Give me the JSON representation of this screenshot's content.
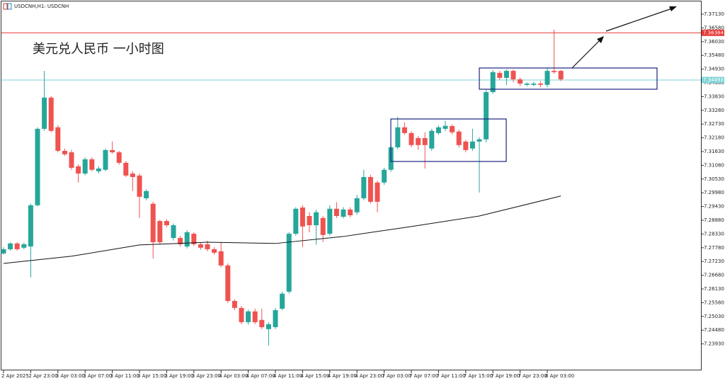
{
  "chart_data": {
    "type": "candlestick",
    "symbol_label": "USDCNH,H1: USDCNH",
    "title": "美元兑人民币 一小时图",
    "up_color": "#26a69a",
    "down_color": "#ef5350",
    "categories": [
      "2 Apr 2025",
      null,
      null,
      null,
      "2 Apr 23:00",
      null,
      null,
      null,
      "3 Apr 03:00",
      null,
      null,
      null,
      "3 Apr 07:00",
      null,
      null,
      null,
      "3 Apr 11:00",
      null,
      null,
      null,
      "3 Apr 15:00",
      null,
      null,
      null,
      "3 Apr 19:00",
      null,
      null,
      null,
      "3 Apr 23:00",
      null,
      null,
      null,
      "4 Apr 03:00",
      null,
      null,
      null,
      "4 Apr 07:00",
      null,
      null,
      null,
      "4 Apr 11:00",
      null,
      null,
      null,
      "4 Apr 15:00",
      null,
      null,
      null,
      "4 Apr 19:00",
      null,
      null,
      null,
      "4 Apr 23:00",
      null,
      null,
      null,
      "7 Apr 03:00",
      null,
      null,
      null,
      "7 Apr 07:00",
      null,
      null,
      null,
      "7 Apr 11:00",
      null,
      null,
      null,
      "7 Apr 15:00",
      null,
      null,
      null,
      "7 Apr 19:00",
      null,
      null,
      null,
      "7 Apr 23:00",
      null,
      null,
      null,
      "8 Apr 03:00",
      null,
      null
    ],
    "open": [
      7.2755,
      7.2772,
      7.2795,
      7.2778,
      7.2783,
      7.2948,
      7.3254,
      7.3379,
      7.326,
      7.3166,
      7.316,
      7.3104,
      7.3075,
      7.3132,
      7.3084,
      7.309,
      7.3169,
      7.316,
      7.3118,
      7.3075,
      7.3067,
      7.2976,
      7.2954,
      7.2885,
      7.2885,
      7.2817,
      7.2817,
      7.2783,
      7.2834,
      7.2792,
      7.2792,
      7.2772,
      7.2764,
      7.2707,
      7.2565,
      7.2537,
      7.248,
      7.2523,
      7.2489,
      7.2452,
      7.246,
      7.2534,
      7.2602,
      7.2834,
      7.2939,
      7.2905,
      7.2868,
      7.2897,
      7.2834,
      7.2934,
      7.2902,
      7.2931,
      7.292,
      7.2976,
      7.3061,
      7.3039,
      7.3039,
      7.309,
      7.318,
      7.326,
      7.3237,
      7.3217,
      7.3217,
      7.3175,
      7.3237,
      7.3254,
      7.3265,
      7.3243,
      7.3203,
      7.3175,
      7.3203,
      7.3212,
      7.3401,
      7.3478,
      7.3458,
      7.3486,
      7.3452,
      7.343,
      7.343,
      7.3435,
      7.343,
      7.3486,
      7.3486
    ],
    "high": [
      7.278,
      7.28,
      7.28,
      7.2798,
      7.2954,
      7.326,
      7.3486,
      7.3385,
      7.3268,
      7.3175,
      7.317,
      7.3112,
      7.314,
      7.314,
      7.3104,
      7.3175,
      7.3203,
      7.3166,
      7.3125,
      7.3084,
      7.3075,
      7.3012,
      7.2962,
      7.289,
      7.2892,
      7.2875,
      7.2825,
      7.2848,
      7.284,
      7.28,
      7.2806,
      7.278,
      7.28,
      7.2715,
      7.2572,
      7.2545,
      7.253,
      7.2534,
      7.2534,
      7.248,
      7.2537,
      7.2602,
      7.284,
      7.294,
      7.2948,
      7.292,
      7.293,
      7.2905,
      7.2948,
      7.296,
      7.294,
      7.294,
      7.299,
      7.309,
      7.307,
      7.3045,
      7.3098,
      7.319,
      7.3302,
      7.328,
      7.3245,
      7.3225,
      7.324,
      7.3254,
      7.3268,
      7.3285,
      7.3272,
      7.325,
      7.321,
      7.3254,
      7.322,
      7.341,
      7.349,
      7.3486,
      7.3492,
      7.3492,
      7.346,
      7.344,
      7.3442,
      7.3445,
      7.3495,
      7.3651,
      7.349
    ],
    "low": [
      7.275,
      7.2766,
      7.2766,
      7.2772,
      7.2659,
      7.2943,
      7.3246,
      7.324,
      7.316,
      7.3146,
      7.309,
      7.3039,
      7.3068,
      7.3084,
      7.3075,
      7.3084,
      7.3155,
      7.311,
      7.3061,
      7.3005,
      7.2897,
      7.2968,
      7.2735,
      7.2792,
      7.286,
      7.2806,
      7.2783,
      7.2775,
      7.2785,
      7.277,
      7.2764,
      7.275,
      7.27,
      7.2557,
      7.2528,
      7.2472,
      7.247,
      7.2472,
      7.2452,
      7.2387,
      7.2452,
      7.2528,
      7.2594,
      7.2826,
      7.278,
      7.284,
      7.279,
      7.28,
      7.2826,
      7.2897,
      7.2895,
      7.29,
      7.291,
      7.2968,
      7.2955,
      7.292,
      7.303,
      7.3082,
      7.3172,
      7.323,
      7.318,
      7.317,
      7.3095,
      7.3166,
      7.323,
      7.3245,
      7.3232,
      7.318,
      7.316,
      7.3166,
      7.2999,
      7.32,
      7.3395,
      7.345,
      7.343,
      7.344,
      7.3425,
      7.3425,
      7.3425,
      7.342,
      7.342,
      7.3475,
      7.3445
    ],
    "close": [
      7.2772,
      7.2795,
      7.2772,
      7.2792,
      7.2948,
      7.3254,
      7.3379,
      7.3246,
      7.3166,
      7.3152,
      7.3098,
      7.3075,
      7.3132,
      7.309,
      7.3095,
      7.3169,
      7.316,
      7.3118,
      7.3067,
      7.3061,
      7.2982,
      7.3005,
      7.28,
      7.28,
      7.2868,
      7.2868,
      7.2792,
      7.284,
      7.2792,
      7.2778,
      7.2772,
      7.2758,
      7.2707,
      7.2565,
      7.2537,
      7.248,
      7.2523,
      7.248,
      7.246,
      7.2472,
      7.2528,
      7.2594,
      7.2834,
      7.2934,
      7.2863,
      7.2868,
      7.292,
      7.2829,
      7.2934,
      7.2905,
      7.2931,
      7.2908,
      7.2976,
      7.3061,
      7.2962,
      7.2962,
      7.309,
      7.318,
      7.326,
      7.3237,
      7.3189,
      7.3189,
      7.3189,
      7.3246,
      7.326,
      7.3266,
      7.324,
      7.3189,
      7.3169,
      7.3203,
      7.3212,
      7.3401,
      7.3481,
      7.3458,
      7.3486,
      7.3452,
      7.3435,
      7.3435,
      7.3435,
      7.343,
      7.3486,
      7.3481,
      7.3452
    ],
    "ma": {
      "color": "#111111",
      "x": [
        0,
        10,
        20,
        30,
        40,
        50,
        60,
        70,
        82
      ],
      "values": [
        7.2715,
        7.2744,
        7.2789,
        7.28,
        7.2795,
        7.2823,
        7.2863,
        7.2905,
        7.2985
      ]
    },
    "hlines": [
      {
        "value": 7.36384,
        "label": "7.36384",
        "color": "#e53935"
      },
      {
        "value": 7.34493,
        "label": "7.34493",
        "color": "#7fd3d6"
      }
    ],
    "ylim": [
      7.2287,
      7.37697
    ],
    "yticks": [
      {
        "value": 7.3713,
        "label": "7.37130"
      },
      {
        "value": 7.3658,
        "label": "7.36580"
      },
      {
        "value": 7.3603,
        "label": "7.36030"
      },
      {
        "value": 7.3548,
        "label": "7.35480"
      },
      {
        "value": 7.3493,
        "label": "7.34930"
      },
      {
        "value": 7.3438,
        "label": "7.34380"
      },
      {
        "value": 7.3383,
        "label": "7.33830"
      },
      {
        "value": 7.3328,
        "label": "7.33280"
      },
      {
        "value": 7.3273,
        "label": "7.32730"
      },
      {
        "value": 7.3218,
        "label": "7.32180"
      },
      {
        "value": 7.3163,
        "label": "7.31630"
      },
      {
        "value": 7.3108,
        "label": "7.31080"
      },
      {
        "value": 7.3053,
        "label": "7.30530"
      },
      {
        "value": 7.2998,
        "label": "7.29980"
      },
      {
        "value": 7.2943,
        "label": "7.29430"
      },
      {
        "value": 7.2888,
        "label": "7.28880"
      },
      {
        "value": 7.2833,
        "label": "7.28330"
      },
      {
        "value": 7.2778,
        "label": "7.27780"
      },
      {
        "value": 7.2723,
        "label": "7.27230"
      },
      {
        "value": 7.2668,
        "label": "7.26680"
      },
      {
        "value": 7.2613,
        "label": "7.26130"
      },
      {
        "value": 7.2558,
        "label": "7.25580"
      },
      {
        "value": 7.2503,
        "label": "7.25030"
      },
      {
        "value": 7.2448,
        "label": "7.24480"
      },
      {
        "value": 7.2393,
        "label": "7.23930"
      }
    ]
  }
}
